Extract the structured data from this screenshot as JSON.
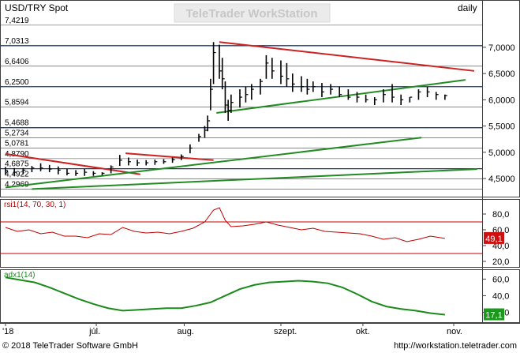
{
  "header": {
    "symbol": "USD/TRY Spot",
    "watermark": "TeleTrader WorkStation",
    "period": "daily"
  },
  "footer": {
    "copyright": "© 2018 TeleTrader Software GmbH",
    "url": "http://workstation.teletrader.com"
  },
  "colors": {
    "background": "#ffffff",
    "price": "#000000",
    "rsi": "#c00000",
    "adx": "#1a8a1a",
    "trend_red": "#cc2222",
    "trend_green": "#228b22",
    "support_line": "#1a3a7a",
    "grid": "#404040",
    "badge_rsi": "#d01010",
    "badge_adx": "#1a9a1a"
  },
  "chart_data": [
    {
      "type": "bar",
      "title": "USD/TRY Spot",
      "ylim": [
        4.2,
        7.45
      ],
      "right_ticks": [
        4.5,
        5.0,
        5.5,
        6.0,
        6.5,
        7.0
      ],
      "right_tick_labels": [
        "4,5000",
        "5,0000",
        "5,5000",
        "6,0000",
        "6,5000",
        "7,0000"
      ],
      "levels": [
        7.4219,
        7.0313,
        6.6406,
        6.25,
        5.8594,
        5.4688,
        5.2734,
        5.0781,
        4.879,
        4.6875,
        4.4922,
        4.2969
      ],
      "level_labels": [
        "7,4219",
        "7,0313",
        "6,6406",
        "6,2500",
        "5,8594",
        "5,4688",
        "5,2734",
        "5,0781",
        "4,8790",
        "4,6875",
        "4,4922",
        "4,2969"
      ],
      "x_labels": [
        "'18",
        "júl.",
        "aug.",
        "szept.",
        "okt.",
        "nov."
      ],
      "x_label_dates": [
        "2018-06-01",
        "2018-07-02",
        "2018-08-01",
        "2018-09-03",
        "2018-10-01",
        "2018-11-01"
      ],
      "trend_lines": [
        {
          "color": "red",
          "from": [
            "2018-06-01",
            4.97
          ],
          "to": [
            "2018-07-17",
            4.58
          ]
        },
        {
          "color": "red",
          "from": [
            "2018-07-12",
            4.98
          ],
          "to": [
            "2018-08-11",
            4.85
          ]
        },
        {
          "color": "red",
          "from": [
            "2018-08-13",
            7.1
          ],
          "to": [
            "2018-11-08",
            6.55
          ]
        },
        {
          "color": "green",
          "from": [
            "2018-08-12",
            5.75
          ],
          "to": [
            "2018-11-05",
            6.38
          ]
        },
        {
          "color": "green",
          "from": [
            "2018-06-01",
            4.33
          ],
          "to": [
            "2018-10-21",
            5.28
          ]
        },
        {
          "color": "green",
          "from": [
            "2018-06-10",
            4.3
          ],
          "to": [
            "2018-11-09",
            4.68
          ]
        }
      ],
      "series": [
        {
          "dates": [
            "2018-06-01",
            "2018-06-04",
            "2018-06-07",
            "2018-06-10",
            "2018-06-13",
            "2018-06-16",
            "2018-06-19",
            "2018-06-22",
            "2018-06-25",
            "2018-06-28",
            "2018-07-01",
            "2018-07-04",
            "2018-07-07",
            "2018-07-10",
            "2018-07-13",
            "2018-07-16",
            "2018-07-19",
            "2018-07-22",
            "2018-07-25",
            "2018-07-28",
            "2018-07-31",
            "2018-08-03",
            "2018-08-06",
            "2018-08-08",
            "2018-08-09",
            "2018-08-10",
            "2018-08-11",
            "2018-08-13",
            "2018-08-14",
            "2018-08-15",
            "2018-08-16",
            "2018-08-17",
            "2018-08-20",
            "2018-08-22",
            "2018-08-24",
            "2018-08-27",
            "2018-08-29",
            "2018-08-31",
            "2018-09-03",
            "2018-09-05",
            "2018-09-07",
            "2018-09-10",
            "2018-09-12",
            "2018-09-14",
            "2018-09-17",
            "2018-09-20",
            "2018-09-23",
            "2018-09-26",
            "2018-09-29",
            "2018-10-02",
            "2018-10-05",
            "2018-10-08",
            "2018-10-11",
            "2018-10-14",
            "2018-10-17",
            "2018-10-20",
            "2018-10-23",
            "2018-10-26",
            "2018-10-29"
          ],
          "high": [
            4.72,
            4.7,
            4.7,
            4.74,
            4.79,
            4.76,
            4.73,
            4.68,
            4.66,
            4.68,
            4.64,
            4.62,
            4.75,
            4.95,
            4.9,
            4.86,
            4.85,
            4.86,
            4.87,
            4.9,
            4.96,
            5.15,
            5.35,
            5.5,
            5.7,
            6.4,
            7.1,
            7.05,
            6.8,
            6.35,
            6.0,
            6.1,
            6.2,
            6.25,
            6.3,
            6.4,
            6.85,
            6.8,
            6.75,
            6.7,
            6.5,
            6.45,
            6.4,
            6.35,
            6.32,
            6.3,
            6.25,
            6.2,
            6.15,
            6.1,
            6.05,
            6.2,
            6.3,
            6.1,
            6.05,
            6.2,
            6.25,
            6.15,
            6.1
          ],
          "low": [
            4.58,
            4.55,
            4.58,
            4.62,
            4.64,
            4.62,
            4.58,
            4.56,
            4.55,
            4.55,
            4.55,
            4.56,
            4.6,
            4.74,
            4.75,
            4.74,
            4.75,
            4.76,
            4.78,
            4.8,
            4.85,
            4.98,
            5.2,
            5.28,
            5.4,
            5.8,
            6.3,
            6.4,
            6.2,
            5.75,
            5.6,
            5.75,
            5.85,
            5.95,
            6.0,
            6.1,
            6.4,
            6.4,
            6.3,
            6.25,
            6.15,
            6.15,
            6.1,
            6.15,
            6.05,
            6.1,
            6.05,
            6.0,
            5.95,
            5.95,
            5.9,
            5.95,
            5.95,
            5.9,
            5.95,
            6.0,
            6.05,
            6.0,
            6.0
          ],
          "close": [
            4.65,
            4.62,
            4.66,
            4.7,
            4.7,
            4.68,
            4.66,
            4.6,
            4.6,
            4.62,
            4.6,
            4.6,
            4.72,
            4.85,
            4.82,
            4.8,
            4.8,
            4.82,
            4.82,
            4.86,
            4.92,
            5.08,
            5.3,
            5.42,
            5.6,
            6.2,
            6.9,
            6.55,
            6.4,
            5.9,
            5.8,
            5.95,
            6.05,
            6.1,
            6.2,
            6.35,
            6.7,
            6.55,
            6.45,
            6.4,
            6.3,
            6.25,
            6.2,
            6.25,
            6.15,
            6.2,
            6.1,
            6.05,
            6.05,
            6.0,
            6.0,
            6.1,
            6.05,
            6.0,
            6.05,
            6.15,
            6.15,
            6.1,
            6.08
          ]
        }
      ]
    },
    {
      "type": "line",
      "title": "rsi1(14, 70, 30, 1)",
      "ylim": [
        15,
        95
      ],
      "right_tick_labels": [
        "80,0",
        "60,0",
        "40,0",
        "20,0"
      ],
      "right_ticks": [
        80,
        60,
        40,
        20
      ],
      "reference_lines": [
        70,
        30
      ],
      "last_value_label": "49,1",
      "series": [
        {
          "name": "rsi1(14, 70, 30, 1)",
          "dates": [
            "2018-06-01",
            "2018-06-05",
            "2018-06-09",
            "2018-06-13",
            "2018-06-17",
            "2018-06-21",
            "2018-06-25",
            "2018-06-29",
            "2018-07-03",
            "2018-07-07",
            "2018-07-11",
            "2018-07-15",
            "2018-07-19",
            "2018-07-23",
            "2018-07-27",
            "2018-07-31",
            "2018-08-04",
            "2018-08-08",
            "2018-08-11",
            "2018-08-13",
            "2018-08-15",
            "2018-08-17",
            "2018-08-21",
            "2018-08-25",
            "2018-08-29",
            "2018-09-02",
            "2018-09-06",
            "2018-09-10",
            "2018-09-14",
            "2018-09-18",
            "2018-09-22",
            "2018-09-26",
            "2018-09-30",
            "2018-10-04",
            "2018-10-08",
            "2018-10-12",
            "2018-10-16",
            "2018-10-20",
            "2018-10-24",
            "2018-10-29"
          ],
          "values": [
            63,
            58,
            60,
            55,
            57,
            52,
            52,
            50,
            55,
            54,
            63,
            58,
            56,
            57,
            55,
            58,
            62,
            70,
            85,
            88,
            72,
            64,
            65,
            67,
            70,
            66,
            63,
            60,
            62,
            58,
            57,
            56,
            55,
            52,
            48,
            50,
            45,
            48,
            52,
            49.1
          ]
        }
      ]
    },
    {
      "type": "area",
      "title": "adx1(14)",
      "ylim": [
        10,
        68
      ],
      "right_tick_labels": [
        "60,0",
        "40,0",
        "20,0"
      ],
      "right_ticks": [
        60,
        40,
        20
      ],
      "last_value_label": "17,1",
      "series": [
        {
          "name": "adx1(14)",
          "dates": [
            "2018-06-01",
            "2018-06-06",
            "2018-06-11",
            "2018-06-16",
            "2018-06-21",
            "2018-06-26",
            "2018-07-01",
            "2018-07-06",
            "2018-07-11",
            "2018-07-16",
            "2018-07-21",
            "2018-07-26",
            "2018-07-31",
            "2018-08-05",
            "2018-08-10",
            "2018-08-15",
            "2018-08-20",
            "2018-08-25",
            "2018-08-30",
            "2018-09-04",
            "2018-09-09",
            "2018-09-14",
            "2018-09-19",
            "2018-09-24",
            "2018-09-29",
            "2018-10-04",
            "2018-10-09",
            "2018-10-14",
            "2018-10-19",
            "2018-10-24",
            "2018-10-29"
          ],
          "values": [
            62,
            59,
            56,
            50,
            43,
            36,
            30,
            25,
            22,
            23,
            24,
            25,
            25,
            28,
            32,
            40,
            48,
            53,
            56,
            57,
            58,
            57,
            55,
            50,
            42,
            33,
            27,
            24,
            22,
            19,
            17.1
          ]
        }
      ]
    }
  ]
}
